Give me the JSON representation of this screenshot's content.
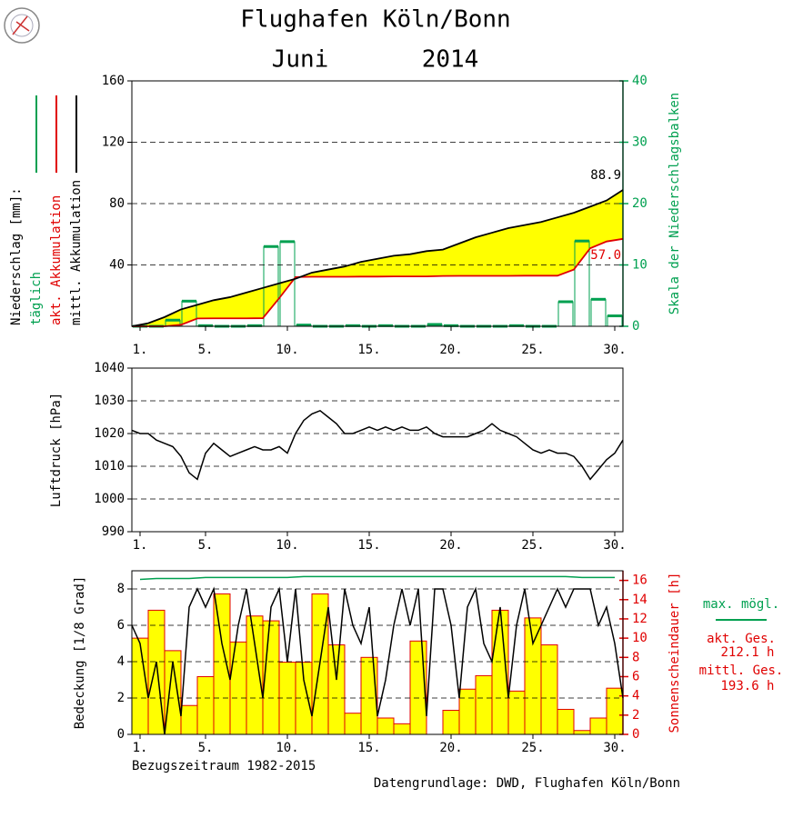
{
  "header": {
    "title": "Flughafen Köln/Bonn",
    "month": "Juni",
    "year": "2014"
  },
  "footer": {
    "reference": "Bezugszeitraum 1982-2015",
    "source": "Datengrundlage: DWD, Flughafen Köln/Bonn"
  },
  "chart_data": [
    {
      "type": "combo",
      "legend_title": "Niederschlag [mm]:",
      "y2label": "Skala der Niederschlagsbalken",
      "y2color": "#00a050",
      "xlim": [
        0.5,
        30.5
      ],
      "xticks": [
        {
          "value": 1,
          "label": "1."
        },
        {
          "value": 5,
          "label": "5."
        },
        {
          "value": 10,
          "label": "10."
        },
        {
          "value": 15,
          "label": "15."
        },
        {
          "value": 20,
          "label": "20."
        },
        {
          "value": 25,
          "label": "25."
        },
        {
          "value": 30,
          "label": "30."
        }
      ],
      "ylim": [
        0,
        160
      ],
      "yticks": [
        40,
        80,
        120,
        160
      ],
      "y2lim": [
        0,
        40
      ],
      "y2ticks": [
        0,
        10,
        20,
        30,
        40
      ],
      "grid": true,
      "fill_between": [
        2,
        1
      ],
      "fill_color": "#ffff00",
      "series": [
        {
          "name": "täglich",
          "type": "bar",
          "axis": "y2",
          "color": "#00a050",
          "x": [
            1,
            2,
            3,
            4,
            5,
            6,
            7,
            8,
            9,
            10,
            11,
            12,
            13,
            14,
            15,
            16,
            17,
            18,
            19,
            20,
            21,
            22,
            23,
            24,
            25,
            26,
            27,
            28,
            29,
            30
          ],
          "values": [
            0,
            0,
            1,
            4.1,
            0.1,
            0,
            0,
            0.1,
            13,
            13.8,
            0.2,
            0,
            0,
            0.1,
            0,
            0.1,
            0,
            0,
            0.3,
            0.1,
            0,
            0,
            0,
            0.1,
            0,
            0,
            4,
            13.9,
            4.4,
            1.7
          ]
        },
        {
          "name": "akt. Akkumulation",
          "type": "line",
          "color": "#e00000",
          "x": [
            0.5,
            1.5,
            2.5,
            3.5,
            4.5,
            5.5,
            6.5,
            7.5,
            8.5,
            9.5,
            10.5,
            11.5,
            12.5,
            13.5,
            14.5,
            15.5,
            16.5,
            17.5,
            18.5,
            19.5,
            20.5,
            21.5,
            22.5,
            23.5,
            24.5,
            25.5,
            26.5,
            27.5,
            28.5,
            29.5,
            30.5
          ],
          "values": [
            0,
            0,
            0,
            1,
            5.1,
            5.2,
            5.2,
            5.2,
            5.3,
            18.3,
            32.1,
            32.3,
            32.3,
            32.3,
            32.4,
            32.4,
            32.5,
            32.5,
            32.5,
            32.8,
            32.9,
            32.9,
            32.9,
            32.9,
            33.0,
            33.0,
            33.0,
            37.0,
            50.9,
            55.3,
            57.0
          ],
          "value_labels": [
            null,
            null,
            null,
            null,
            null,
            null,
            null,
            null,
            null,
            null,
            null,
            null,
            null,
            null,
            null,
            null,
            null,
            null,
            null,
            null,
            null,
            null,
            null,
            null,
            null,
            null,
            null,
            null,
            null,
            null,
            "57.0"
          ]
        },
        {
          "name": "mittl. Akkumulation",
          "type": "line",
          "color": "#000000",
          "x": [
            0.5,
            1.5,
            2.5,
            3.5,
            4.5,
            5.5,
            6.5,
            7.5,
            8.5,
            9.5,
            10.5,
            11.5,
            12.5,
            13.5,
            14.5,
            15.5,
            16.5,
            17.5,
            18.5,
            19.5,
            20.5,
            21.5,
            22.5,
            23.5,
            24.5,
            25.5,
            26.5,
            27.5,
            28.5,
            29.5,
            30.5
          ],
          "values": [
            0,
            2,
            6,
            11,
            14,
            17,
            19,
            22,
            25,
            28,
            31,
            35,
            37,
            39,
            42,
            44,
            46,
            47,
            49,
            50,
            54,
            58,
            61,
            64,
            66,
            68,
            71,
            74,
            78,
            82,
            88.9
          ],
          "value_labels": [
            null,
            null,
            null,
            null,
            null,
            null,
            null,
            null,
            null,
            null,
            null,
            null,
            null,
            null,
            null,
            null,
            null,
            null,
            null,
            null,
            null,
            null,
            null,
            null,
            null,
            null,
            null,
            null,
            null,
            null,
            "88.9"
          ]
        }
      ]
    },
    {
      "type": "line",
      "ylabel": "Luftdruck [hPa]",
      "xlim": [
        0.5,
        30.5
      ],
      "xticks": [
        {
          "value": 1,
          "label": "1."
        },
        {
          "value": 5,
          "label": "5."
        },
        {
          "value": 10,
          "label": "10."
        },
        {
          "value": 15,
          "label": "15."
        },
        {
          "value": 20,
          "label": "20."
        },
        {
          "value": 25,
          "label": "25."
        },
        {
          "value": 30,
          "label": "30."
        }
      ],
      "ylim": [
        990,
        1040
      ],
      "yticks": [
        990,
        1000,
        1010,
        1020,
        1030,
        1040
      ],
      "grid": true,
      "series": [
        {
          "type": "line",
          "color": "#000000",
          "x": [
            0.5,
            1,
            1.5,
            2,
            2.5,
            3,
            3.5,
            4,
            4.5,
            5,
            5.5,
            6,
            6.5,
            7,
            7.5,
            8,
            8.5,
            9,
            9.5,
            10,
            10.5,
            11,
            11.5,
            12,
            12.5,
            13,
            13.5,
            14,
            14.5,
            15,
            15.5,
            16,
            16.5,
            17,
            17.5,
            18,
            18.5,
            19,
            19.5,
            20,
            20.5,
            21,
            21.5,
            22,
            22.5,
            23,
            23.5,
            24,
            24.5,
            25,
            25.5,
            26,
            26.5,
            27,
            27.5,
            28,
            28.5,
            29,
            29.5,
            30,
            30.5
          ],
          "values": [
            1021,
            1020,
            1020,
            1018,
            1017,
            1016,
            1013,
            1008,
            1006,
            1014,
            1017,
            1015,
            1013,
            1014,
            1015,
            1016,
            1015,
            1015,
            1016,
            1014,
            1020,
            1024,
            1026,
            1027,
            1025,
            1023,
            1020,
            1020,
            1021,
            1022,
            1021,
            1022,
            1021,
            1022,
            1021,
            1021,
            1022,
            1020,
            1019,
            1019,
            1019,
            1019,
            1020,
            1021,
            1023,
            1021,
            1020,
            1019,
            1017,
            1015,
            1014,
            1015,
            1014,
            1014,
            1013,
            1010,
            1006,
            1009,
            1012,
            1014,
            1018
          ]
        }
      ]
    },
    {
      "type": "combo",
      "ylabel": "Bedeckung [1/8 Grad]",
      "y2label": "Sonnenscheindauer [h]",
      "y2color": "#e00000",
      "xlim": [
        0.5,
        30.5
      ],
      "xticks": [
        {
          "value": 1,
          "label": "1."
        },
        {
          "value": 5,
          "label": "5."
        },
        {
          "value": 10,
          "label": "10."
        },
        {
          "value": 15,
          "label": "15."
        },
        {
          "value": 20,
          "label": "20."
        },
        {
          "value": 25,
          "label": "25."
        },
        {
          "value": 30,
          "label": "30."
        }
      ],
      "ylim": [
        0,
        9
      ],
      "yticks": [
        0,
        2,
        4,
        6,
        8
      ],
      "y2lim": [
        0,
        17
      ],
      "y2ticks": [
        0,
        2,
        4,
        6,
        8,
        10,
        12,
        14,
        16
      ],
      "grid": true,
      "totals": {
        "current_label": "akt. Ges.",
        "current": "212.1 h",
        "mean_label": "mittl. Ges.",
        "mean": "193.6 h"
      },
      "series": [
        {
          "type": "bar",
          "axis": "y2",
          "color": "#ffff00",
          "edge_color": "#e00000",
          "x": [
            1,
            2,
            3,
            4,
            5,
            6,
            7,
            8,
            9,
            10,
            11,
            12,
            13,
            14,
            15,
            16,
            17,
            18,
            19,
            20,
            21,
            22,
            23,
            24,
            25,
            26,
            27,
            28,
            29,
            30
          ],
          "values": [
            10.0,
            12.9,
            8.7,
            3.0,
            6.0,
            14.6,
            9.6,
            12.3,
            11.8,
            7.5,
            7.5,
            14.6,
            9.3,
            2.2,
            8.0,
            1.7,
            1.1,
            9.7,
            0,
            2.5,
            4.7,
            6.1,
            12.9,
            4.5,
            12.1,
            9.3,
            2.6,
            0.4,
            1.7,
            4.8
          ]
        },
        {
          "type": "line",
          "color": "#000000",
          "x": [
            0.5,
            1,
            1.5,
            2,
            2.5,
            3,
            3.5,
            4,
            4.5,
            5,
            5.5,
            6,
            6.5,
            7,
            7.5,
            8,
            8.5,
            9,
            9.5,
            10,
            10.5,
            11,
            11.5,
            12,
            12.5,
            13,
            13.5,
            14,
            14.5,
            15,
            15.5,
            16,
            16.5,
            17,
            17.5,
            18,
            18.5,
            19,
            19.5,
            20,
            20.5,
            21,
            21.5,
            22,
            22.5,
            23,
            23.5,
            24,
            24.5,
            25,
            25.5,
            26,
            26.5,
            27,
            27.5,
            28,
            28.5,
            29,
            29.5,
            30,
            30.5
          ],
          "values": [
            6,
            5,
            2,
            4,
            0,
            4,
            1,
            7,
            8,
            7,
            8,
            5,
            3,
            6,
            8,
            5,
            2,
            7,
            8,
            4,
            8,
            3,
            1,
            4,
            7,
            3,
            8,
            6,
            5,
            7,
            1,
            3,
            6,
            8,
            6,
            8,
            1,
            8,
            8,
            6,
            2,
            7,
            8,
            5,
            4,
            7,
            2,
            6,
            8,
            5,
            6,
            7,
            8,
            7,
            8,
            8,
            8,
            6,
            7,
            5,
            2
          ]
        },
        {
          "name": "max. mögl.",
          "type": "line",
          "axis": "y2",
          "color": "#00a050",
          "x": [
            1,
            2,
            3,
            4,
            5,
            6,
            7,
            8,
            9,
            10,
            11,
            12,
            13,
            14,
            15,
            16,
            17,
            18,
            19,
            20,
            21,
            22,
            23,
            24,
            25,
            26,
            27,
            28,
            29,
            30
          ],
          "values": [
            16.1,
            16.2,
            16.2,
            16.2,
            16.3,
            16.3,
            16.3,
            16.3,
            16.3,
            16.3,
            16.4,
            16.4,
            16.4,
            16.4,
            16.4,
            16.4,
            16.4,
            16.4,
            16.4,
            16.4,
            16.4,
            16.4,
            16.4,
            16.4,
            16.4,
            16.4,
            16.4,
            16.3,
            16.3,
            16.3
          ]
        }
      ]
    }
  ]
}
